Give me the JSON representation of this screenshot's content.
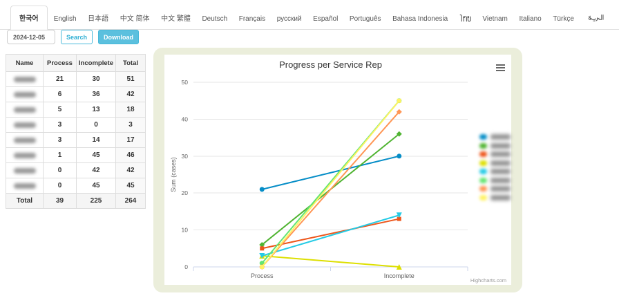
{
  "language_tabs": {
    "items": [
      {
        "label": "한국어",
        "active": true
      },
      {
        "label": "English",
        "active": false
      },
      {
        "label": "日本語",
        "active": false
      },
      {
        "label": "中文 简体",
        "active": false
      },
      {
        "label": "中文 繁體",
        "active": false
      },
      {
        "label": "Deutsch",
        "active": false
      },
      {
        "label": "Français",
        "active": false
      },
      {
        "label": "русский",
        "active": false
      },
      {
        "label": "Español",
        "active": false
      },
      {
        "label": "Português",
        "active": false
      },
      {
        "label": "Bahasa Indonesia",
        "active": false
      },
      {
        "label": "ไทย",
        "active": false
      },
      {
        "label": "Vietnam",
        "active": false
      },
      {
        "label": "Italiano",
        "active": false
      },
      {
        "label": "Türkçe",
        "active": false
      },
      {
        "label": "العربية",
        "active": false
      }
    ]
  },
  "toolbar": {
    "date_value": "2024-12-05",
    "search_label": "Search",
    "download_label": "Download"
  },
  "table": {
    "headers": [
      "Name",
      "Process",
      "Incomplete",
      "Total"
    ],
    "name_column_redacted": true,
    "rows": [
      {
        "process": 21,
        "incomplete": 30,
        "total": 51
      },
      {
        "process": 6,
        "incomplete": 36,
        "total": 42
      },
      {
        "process": 5,
        "incomplete": 13,
        "total": 18
      },
      {
        "process": 3,
        "incomplete": 0,
        "total": 3
      },
      {
        "process": 3,
        "incomplete": 14,
        "total": 17
      },
      {
        "process": 1,
        "incomplete": 45,
        "total": 46
      },
      {
        "process": 0,
        "incomplete": 42,
        "total": 42
      },
      {
        "process": 0,
        "incomplete": 45,
        "total": 45
      }
    ],
    "total_row": {
      "label": "Total",
      "process": 39,
      "incomplete": 225,
      "total": 264
    }
  },
  "chart_data": {
    "type": "line",
    "title": "Progress per Service Rep",
    "ylabel": "Sum (cases)",
    "categories": [
      "Process",
      "Incomplete"
    ],
    "ylim": [
      0,
      50
    ],
    "y_ticks": [
      0,
      10,
      20,
      30,
      40,
      50
    ],
    "grid": true,
    "legend_position": "right",
    "legend_labels_redacted": true,
    "credit": "Highcharts.com",
    "series": [
      {
        "color": "#058DC7",
        "marker": "circle",
        "values": [
          21,
          30
        ]
      },
      {
        "color": "#50B432",
        "marker": "diamond",
        "values": [
          6,
          36
        ]
      },
      {
        "color": "#ED561B",
        "marker": "square",
        "values": [
          5,
          13
        ]
      },
      {
        "color": "#DDDF00",
        "marker": "triangle",
        "values": [
          3,
          0
        ]
      },
      {
        "color": "#24CBE5",
        "marker": "triangle-down",
        "values": [
          3,
          14
        ]
      },
      {
        "color": "#64E572",
        "marker": "circle",
        "values": [
          1,
          45
        ]
      },
      {
        "color": "#FF9655",
        "marker": "diamond",
        "values": [
          0,
          42
        ]
      },
      {
        "color": "#FFF263",
        "marker": "square",
        "values": [
          0,
          45
        ]
      }
    ]
  }
}
